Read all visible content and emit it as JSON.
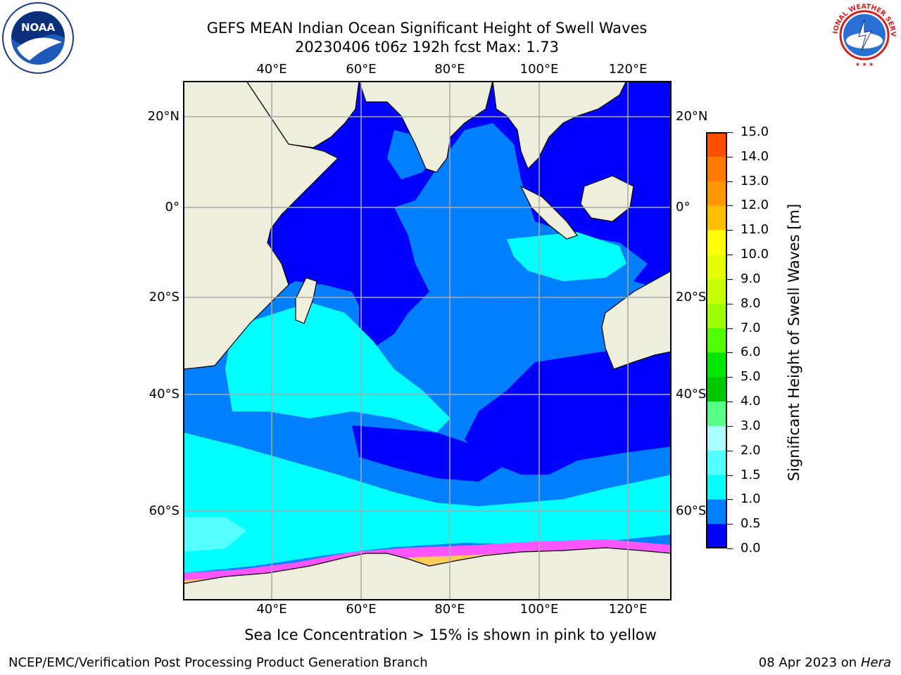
{
  "header": {
    "title_line1": "GEFS MEAN Indian Ocean Significant Height of Swell Waves",
    "title_line2": "20230406 t06z 192h fcst   Max: 1.73"
  },
  "logos": {
    "left": "noaa-logo",
    "left_text": "NOAA",
    "right": "national-weather-service-logo",
    "right_text": "NATIONAL WEATHER SERVICE"
  },
  "map": {
    "lon_ticks": [
      "40°E",
      "60°E",
      "80°E",
      "100°E",
      "120°E"
    ],
    "lat_ticks": [
      "20°N",
      "0°",
      "20°S",
      "40°S",
      "60°S"
    ],
    "colors": {
      "land": "#eeeedc",
      "ocean_0_05": "#0000ff",
      "ocean_05_10": "#0080ff",
      "ocean_10_15": "#00ffff",
      "ocean_15_20": "#55ffff",
      "sea_ice_edge": "#ff55ff",
      "sea_ice_inner": "#ffcc55",
      "grid": "#aaaaaa"
    }
  },
  "colorbar": {
    "title": "Significant Height of Swell Waves [m]",
    "labels": [
      "15.0",
      "14.0",
      "13.0",
      "12.0",
      "11.0",
      "10.0",
      "9.0",
      "8.0",
      "7.0",
      "6.0",
      "5.0",
      "4.0",
      "3.0",
      "2.0",
      "1.5",
      "1.0",
      "0.5",
      "0.0"
    ],
    "colors": [
      "#ff0000",
      "#ff2800",
      "#ff5000",
      "#ff7800",
      "#ff9600",
      "#ffbe00",
      "#ffff00",
      "#e6ff00",
      "#c8ff00",
      "#a0ff00",
      "#50ff00",
      "#00e600",
      "#00c800",
      "#55ff88",
      "#aaffff",
      "#55ffff",
      "#00ffff",
      "#0080ff",
      "#0000ff"
    ]
  },
  "footer": {
    "note": "Sea Ice Concentration > 15% is shown in pink to yellow",
    "credit_left": "NCEP/EMC/Verification Post Processing Product Generation Branch",
    "credit_right_date": "08 Apr 2023 on ",
    "credit_right_machine": "Hera"
  }
}
